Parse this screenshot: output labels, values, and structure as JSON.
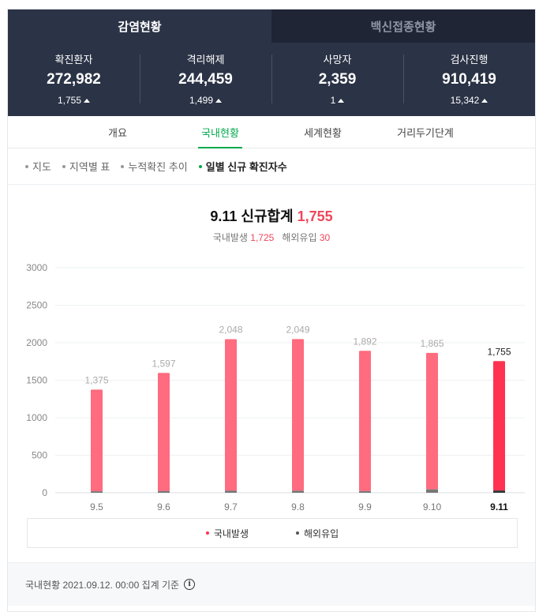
{
  "top_tabs": [
    {
      "label": "감염현황",
      "active": true
    },
    {
      "label": "백신접종현황",
      "active": false
    }
  ],
  "stats": [
    {
      "label": "확진환자",
      "value": "272,982",
      "delta": "1,755"
    },
    {
      "label": "격리해제",
      "value": "244,459",
      "delta": "1,499"
    },
    {
      "label": "사망자",
      "value": "2,359",
      "delta": "1"
    },
    {
      "label": "검사진행",
      "value": "910,419",
      "delta": "15,342"
    }
  ],
  "sub_tabs": [
    "개요",
    "국내현황",
    "세계현황",
    "거리두기단계"
  ],
  "active_sub_tab": 1,
  "views": [
    "지도",
    "지역별 표",
    "누적확진 추이",
    "일별 신규 확진자수"
  ],
  "active_view": 3,
  "headline": {
    "date": "9.11",
    "label": "신규합계",
    "total": "1,755"
  },
  "subline": {
    "domestic_label": "국내발생",
    "domestic": "1,725",
    "overseas_label": "해외유입",
    "overseas": "30"
  },
  "colors": {
    "domestic": "#ff6b7f",
    "domestic_today": "#ff3350",
    "overseas": "#555555",
    "accent": "#03a94d"
  },
  "chart_data": {
    "type": "bar",
    "categories": [
      "9.5",
      "9.6",
      "9.7",
      "9.8",
      "9.9",
      "9.10",
      "9.11"
    ],
    "series": [
      {
        "name": "국내발생",
        "values": [
          1355,
          1574,
          2020,
          2022,
          1870,
          1820,
          1725
        ]
      },
      {
        "name": "해외유입",
        "values": [
          20,
          23,
          28,
          27,
          22,
          45,
          30
        ]
      }
    ],
    "totals": [
      1375,
      1597,
      2048,
      2049,
      1892,
      1865,
      1755
    ],
    "total_labels": [
      "1,375",
      "1,597",
      "2,048",
      "2,049",
      "1,892",
      "1,865",
      "1,755"
    ],
    "y_ticks": [
      0,
      500,
      1000,
      1500,
      2000,
      2500,
      3000
    ],
    "ylim": [
      0,
      3000
    ],
    "highlight_index": 6,
    "grid": true,
    "legend_position": "bottom"
  },
  "legend": [
    "국내발생",
    "해외유입"
  ],
  "footer": "국내현황 2021.09.12. 00:00 집계 기준"
}
